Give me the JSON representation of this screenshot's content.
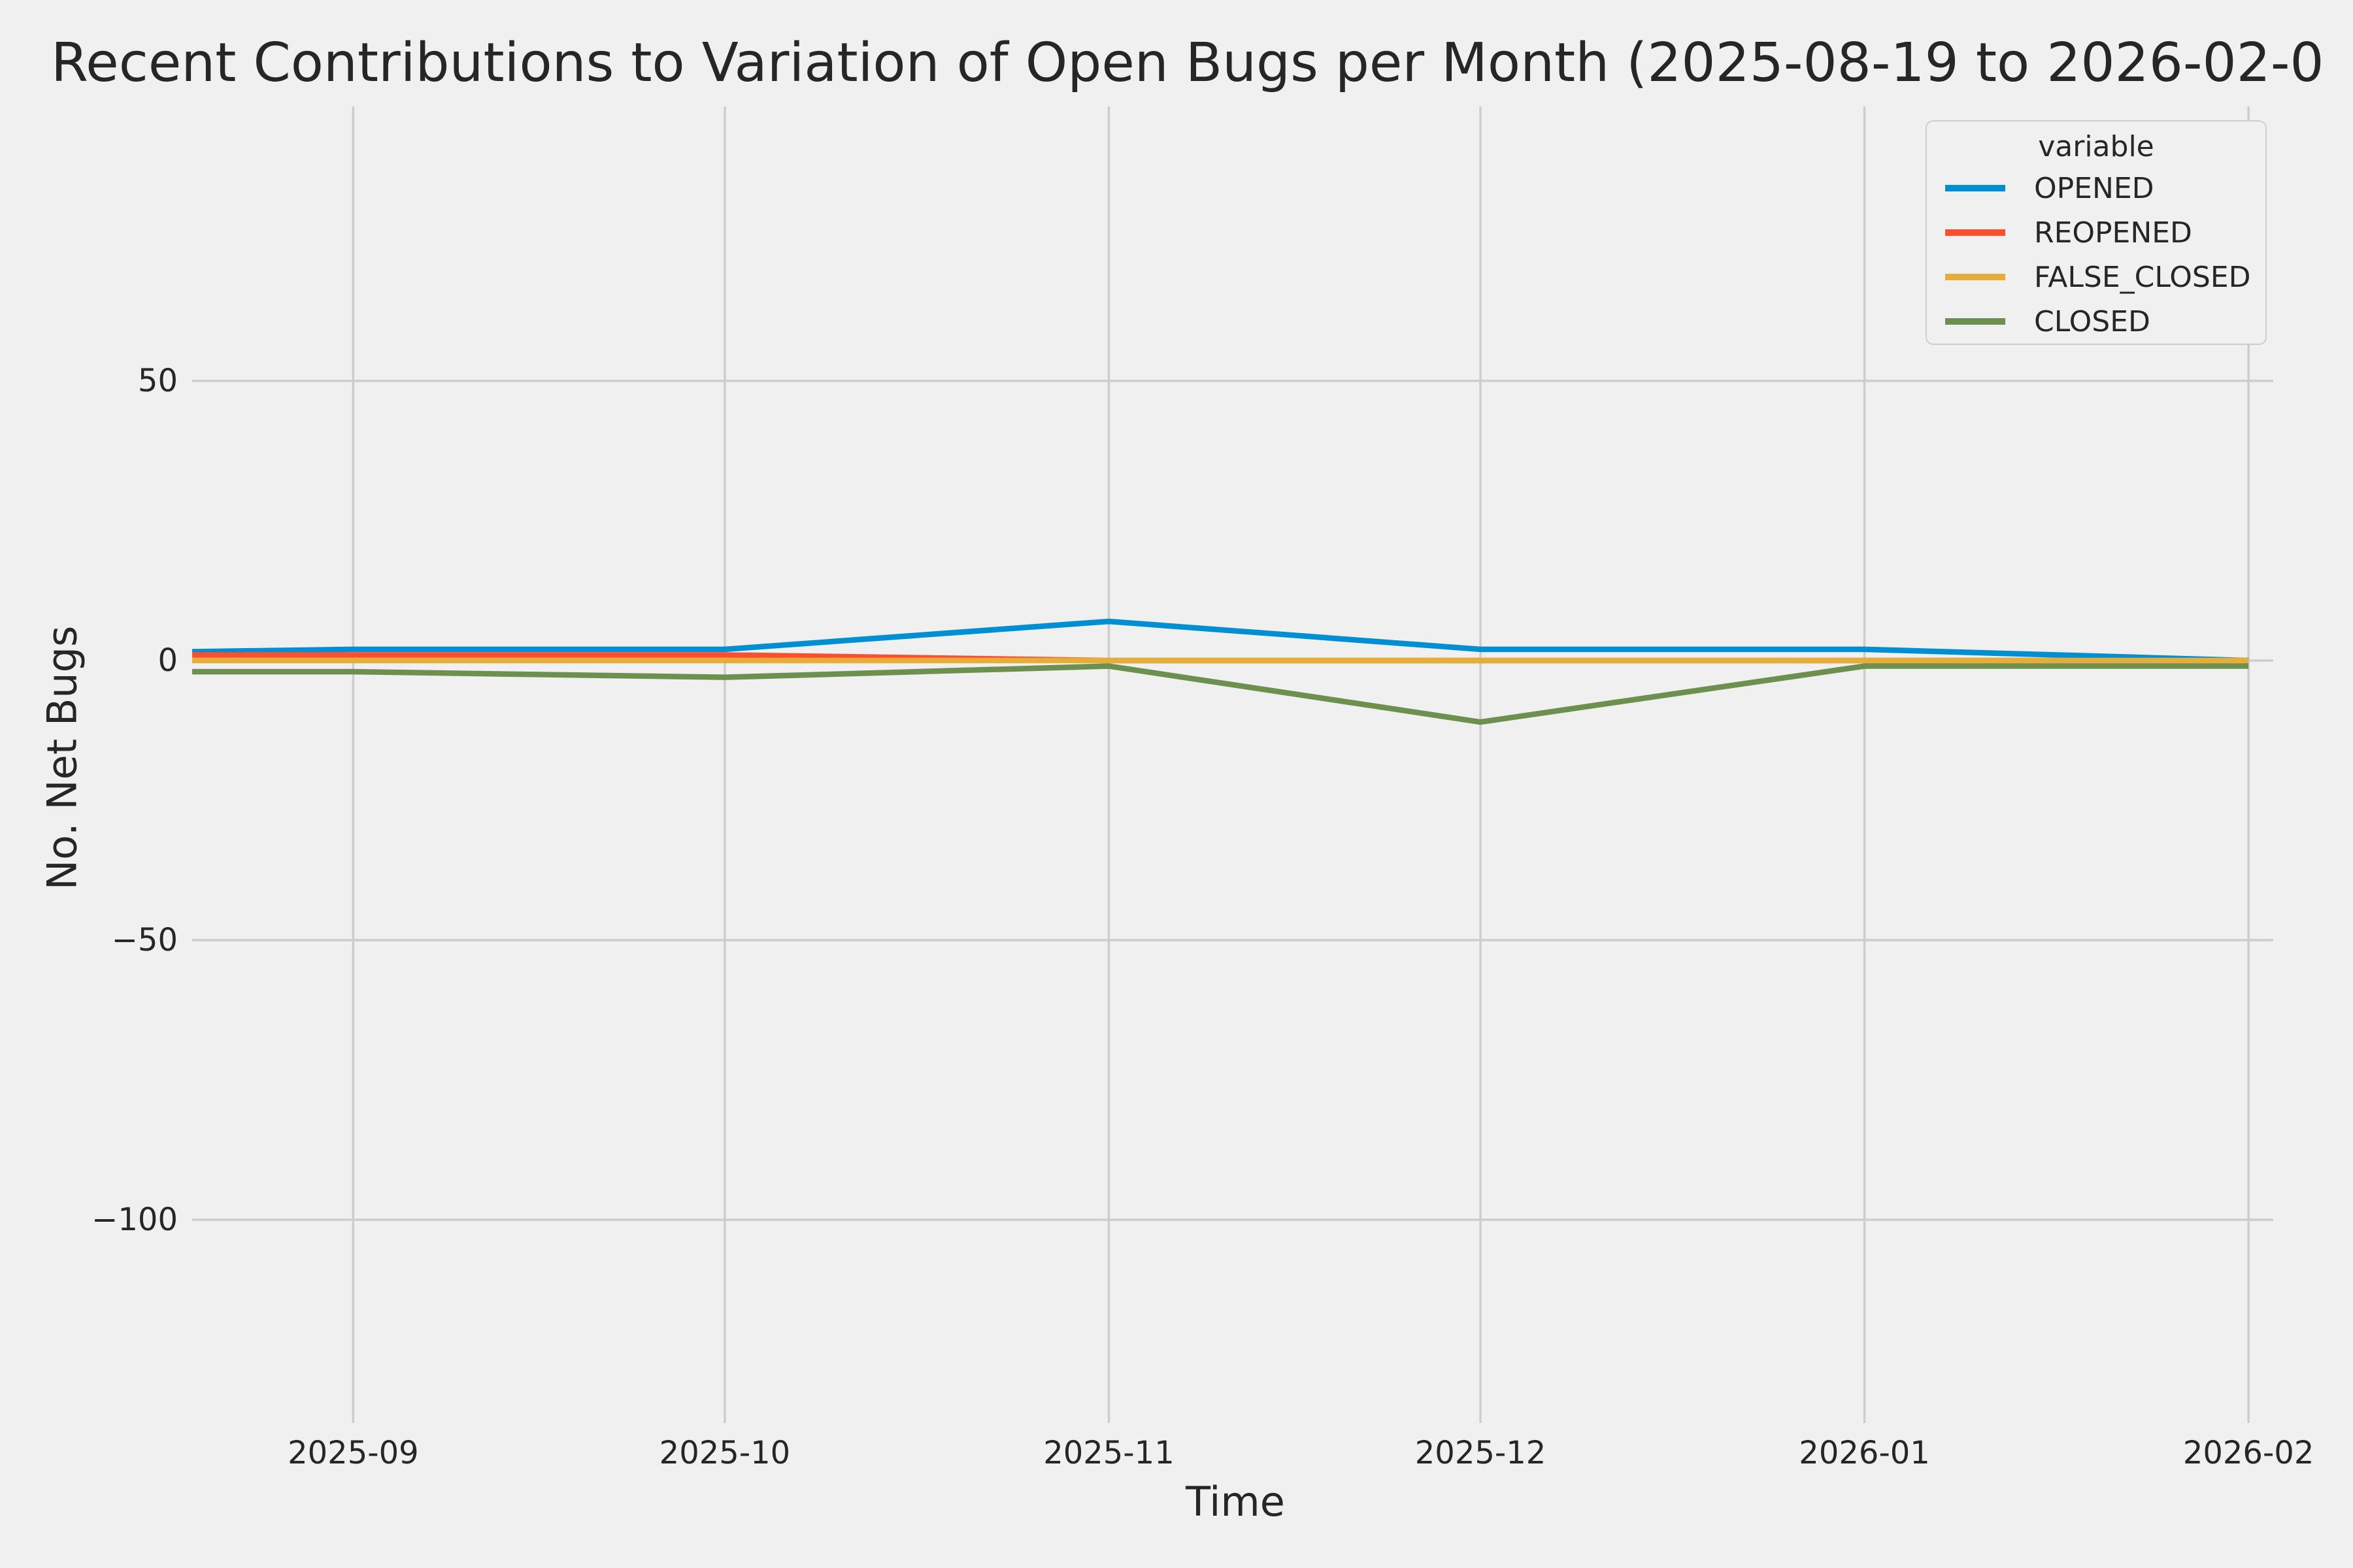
{
  "title": "Recent Contributions to Variation of Open Bugs per Month (2025-08-19 to 2026-02-0",
  "colors": {
    "background": "#f0f0f0",
    "gridline": "#cdcdcd",
    "text": "#262626",
    "opened": "#008fd5",
    "reopened": "#fc4f30",
    "false_closed": "#e5ae38",
    "closed": "#6d904f"
  },
  "chart_data": {
    "type": "line",
    "title": "Recent Contributions to Variation of Open Bugs per Month (2025-08-19 to 2026-02-0",
    "xlabel": "Time",
    "ylabel": "No. Net Bugs",
    "legend_title": "variable",
    "legend_position": "upper right",
    "grid": true,
    "x": [
      "2025-08",
      "2025-09",
      "2025-10",
      "2025-11",
      "2025-12",
      "2026-01",
      "2026-02"
    ],
    "series": [
      {
        "name": "OPENED",
        "color": "#008fd5",
        "values": [
          1,
          2,
          2,
          7,
          2,
          2,
          0
        ]
      },
      {
        "name": "REOPENED",
        "color": "#fc4f30",
        "values": [
          1,
          1,
          1,
          0,
          0,
          0,
          0
        ]
      },
      {
        "name": "FALSE_CLOSED",
        "color": "#e5ae38",
        "values": [
          0,
          0,
          0,
          0,
          0,
          0,
          0
        ]
      },
      {
        "name": "CLOSED",
        "color": "#6d904f",
        "values": [
          -2,
          -2,
          -3,
          -1,
          -11,
          -1,
          -1
        ]
      }
    ],
    "xticks": [
      "2025-09",
      "2025-10",
      "2025-11",
      "2025-12",
      "2026-01",
      "2026-02"
    ],
    "yticks": [
      50,
      0,
      -50,
      -100
    ],
    "xlim": [
      "2025-08-19",
      "2026-02-03"
    ],
    "ylim": [
      -136,
      99
    ]
  }
}
